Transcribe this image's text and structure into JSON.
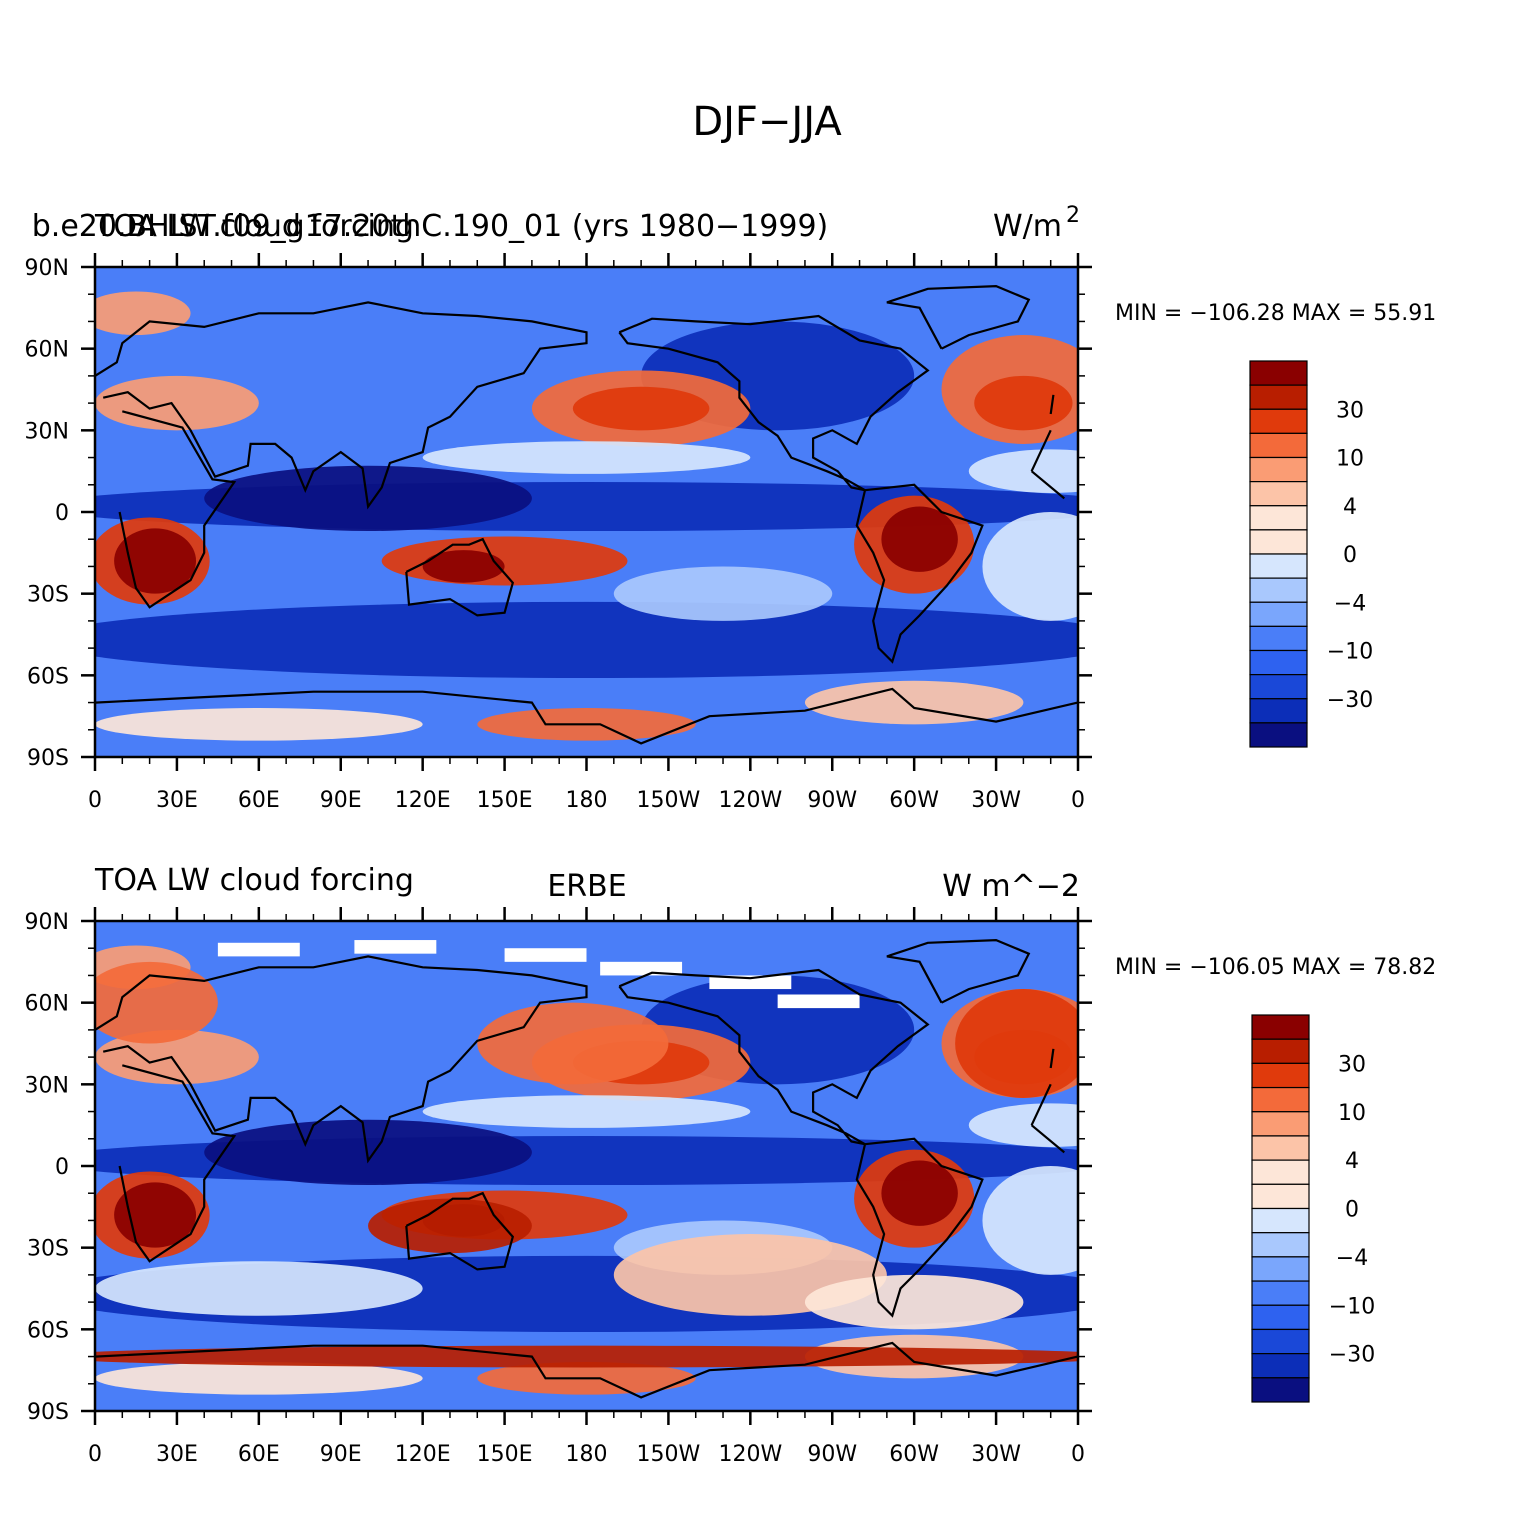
{
  "figure": {
    "title": "DJF−JJA"
  },
  "colors": {
    "levels": [
      "#0a0f80",
      "#0c2eb8",
      "#1a48d8",
      "#2e62f0",
      "#4a7ef8",
      "#7aa6fc",
      "#a9c8fd",
      "#d6e6fd",
      "#fde6d8",
      "#fcc4a8",
      "#fa9c74",
      "#f36a3a",
      "#e03a0c",
      "#b81e00",
      "#8a0000"
    ],
    "coast": "#000000"
  },
  "lat_labels": [
    "90N",
    "60N",
    "30N",
    "0",
    "30S",
    "60S",
    "90S"
  ],
  "lon_labels": [
    "0",
    "30E",
    "60E",
    "90E",
    "120E",
    "150E",
    "180",
    "150W",
    "120W",
    "90W",
    "60W",
    "30W",
    "0"
  ],
  "colorbar_labels": [
    "30",
    "10",
    "4",
    "0",
    "−4",
    "−10",
    "−30"
  ],
  "panels": [
    {
      "left_title": "TOA LW cloud forcing",
      "center_title": "b.e20.BHIST.f09_g17.20thC.190_01 (yrs 1980−1999)",
      "right_title": "W/m",
      "right_sup": "2",
      "minmax": "MIN = −106.28  MAX =   55.91"
    },
    {
      "left_title": "TOA LW cloud forcing",
      "center_title": "ERBE",
      "right_title": "W m^−2",
      "right_sup": "",
      "minmax": "MIN = −106.05  MAX =   78.82"
    }
  ],
  "chart_data": [
    {
      "type": "heatmap",
      "title": "b.e20.BHIST.f09_g17.20thC.190_01 (yrs 1980−1999)",
      "variable": "TOA LW cloud forcing",
      "units": "W/m2",
      "min": -106.28,
      "max": 55.91,
      "xlim": [
        0,
        360
      ],
      "ylim": [
        -90,
        90
      ],
      "contour_levels": [
        -50,
        -40,
        -30,
        -20,
        -10,
        -6,
        -4,
        -2,
        0,
        2,
        4,
        6,
        10,
        20,
        30,
        40
      ]
    },
    {
      "type": "heatmap",
      "title": "ERBE",
      "variable": "TOA LW cloud forcing",
      "units": "W m^-2",
      "min": -106.05,
      "max": 78.82,
      "xlim": [
        0,
        360
      ],
      "ylim": [
        -90,
        90
      ],
      "contour_levels": [
        -50,
        -40,
        -30,
        -20,
        -10,
        -6,
        -4,
        -2,
        0,
        2,
        4,
        6,
        10,
        20,
        30,
        40
      ]
    }
  ]
}
